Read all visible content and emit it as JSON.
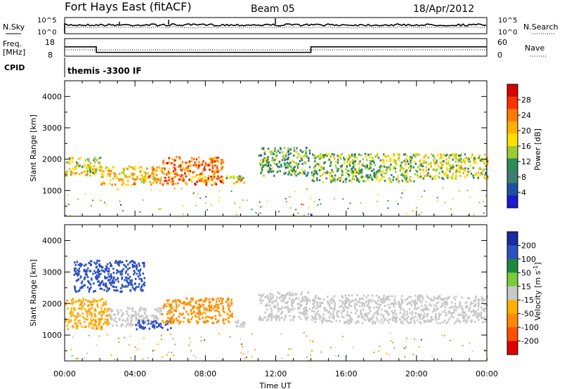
{
  "header": {
    "station": "Fort Hays East (fitACF)",
    "beam": "Beam 05",
    "date": "18/Apr/2012"
  },
  "noise_panel": {
    "left_label": "N.Sky",
    "right_label": "N.Search",
    "left_ticks": [
      "10^5",
      "10^0"
    ],
    "right_ticks": [
      "10^5",
      "10^0"
    ]
  },
  "freq_panel": {
    "left_label_1": "Freq.",
    "left_label_2": "[MHz]",
    "right_label": "Nave",
    "left_ticks": [
      "18",
      "8"
    ],
    "right_ticks": [
      "60",
      "0"
    ]
  },
  "cpid": {
    "label": "CPID",
    "value": "themis -3300 IF"
  },
  "power_scale": {
    "label": "Power [dB]",
    "ticks": [
      "28",
      "24",
      "20",
      "16",
      "12",
      "8",
      "4"
    ],
    "colors": [
      "#d50000",
      "#ff3000",
      "#ff7a00",
      "#ffb000",
      "#ffe000",
      "#9acd32",
      "#2e8b57",
      "#3c7f70",
      "#2050a0",
      "#1a1ad0"
    ]
  },
  "velocity_scale": {
    "label": "Velocity [m s^-1]",
    "label_main": "Velocity [m s",
    "label_sup": "-1",
    "label_end": "]",
    "ticks": [
      "200",
      "100",
      "50",
      "15",
      "-15",
      "-50",
      "-100",
      "-200"
    ],
    "colors": [
      "#1a2aa0",
      "#2e50c0",
      "#1c8a3a",
      "#7acb3a",
      "#c8c8c8",
      "#ffb000",
      "#ff8a00",
      "#ff5000",
      "#e00000"
    ]
  },
  "chart_data": {
    "type": "heatmap",
    "xlabel": "Time UT",
    "x_ticks": [
      "00:00",
      "04:00",
      "08:00",
      "12:00",
      "16:00",
      "20:00",
      "00:00"
    ],
    "xlim_hours": [
      0,
      24
    ],
    "ylabel": "Slant Range [km]",
    "y_ticks": [
      4000,
      3000,
      2000,
      1000
    ],
    "ylim_km": [
      180,
      4500
    ],
    "frequency_segments": [
      {
        "start": 0.0,
        "end": 1.8,
        "freq_mhz": 14.5
      },
      {
        "start": 1.8,
        "end": 14.0,
        "freq_mhz": 10.3
      },
      {
        "start": 14.0,
        "end": 24.0,
        "freq_mhz": 14.5
      }
    ],
    "power_regions": [
      {
        "t0": 0.0,
        "t1": 2.0,
        "r0": 1500,
        "r1": 2100,
        "db": 18
      },
      {
        "t0": 2.0,
        "t1": 5.5,
        "r0": 1200,
        "r1": 1800,
        "db": 20
      },
      {
        "t0": 5.5,
        "t1": 9.0,
        "r0": 1200,
        "r1": 2100,
        "db": 24
      },
      {
        "t0": 9.0,
        "t1": 10.2,
        "r0": 1250,
        "r1": 1500,
        "db": 18
      },
      {
        "t0": 11.0,
        "t1": 13.9,
        "r0": 1500,
        "r1": 2400,
        "db": 12
      },
      {
        "t0": 14.0,
        "t1": 20.0,
        "r0": 1300,
        "r1": 2200,
        "db": 14
      },
      {
        "t0": 20.0,
        "t1": 24.0,
        "r0": 1400,
        "r1": 2200,
        "db": 16
      }
    ],
    "velocity_regions": [
      {
        "t0": 0.0,
        "t1": 2.5,
        "r0": 1200,
        "r1": 2200,
        "vel": -40
      },
      {
        "t0": 0.5,
        "t1": 4.5,
        "r0": 2400,
        "r1": 3400,
        "vel": 150
      },
      {
        "t0": 2.5,
        "t1": 5.5,
        "r0": 1300,
        "r1": 1900,
        "vel": 0
      },
      {
        "t0": 4.0,
        "t1": 6.0,
        "r0": 1200,
        "r1": 1500,
        "vel": 180
      },
      {
        "t0": 5.5,
        "t1": 9.5,
        "r0": 1400,
        "r1": 2200,
        "vel": -60
      },
      {
        "t0": 9.5,
        "t1": 10.2,
        "r0": 1250,
        "r1": 1500,
        "vel": 0
      },
      {
        "t0": 11.0,
        "t1": 13.9,
        "r0": 1500,
        "r1": 2400,
        "vel": 0
      },
      {
        "t0": 14.0,
        "t1": 24.0,
        "r0": 1400,
        "r1": 2300,
        "vel": 0
      }
    ]
  }
}
